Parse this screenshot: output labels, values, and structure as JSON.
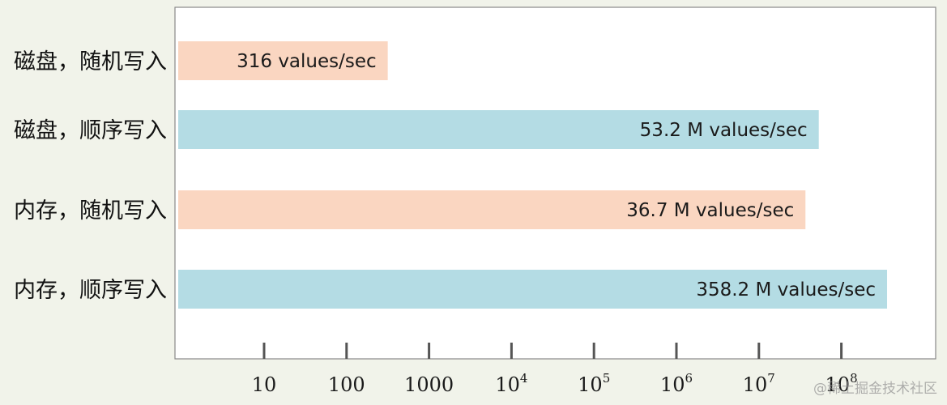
{
  "chart_data": {
    "type": "bar",
    "orientation": "horizontal",
    "x_scale": "log",
    "categories": [
      "磁盘，随机写入",
      "磁盘，顺序写入",
      "内存，随机写入",
      "内存，顺序写入"
    ],
    "values": [
      316,
      53200000,
      36700000,
      358200000
    ],
    "data_labels": [
      "316 values/sec",
      "53.2 M values/sec",
      "36.7 M values/sec",
      "358.2 M values/sec"
    ],
    "bar_colors": [
      "#fad6c1",
      "#b4dce4",
      "#fad6c1",
      "#b4dce4"
    ],
    "ticks": [
      {
        "value": 10,
        "base": "10",
        "exp": ""
      },
      {
        "value": 100,
        "base": "100",
        "exp": ""
      },
      {
        "value": 1000,
        "base": "1000",
        "exp": ""
      },
      {
        "value": 10000,
        "base": "10",
        "exp": "4"
      },
      {
        "value": 100000,
        "base": "10",
        "exp": "5"
      },
      {
        "value": 1000000,
        "base": "10",
        "exp": "6"
      },
      {
        "value": 10000000,
        "base": "10",
        "exp": "7"
      },
      {
        "value": 100000000,
        "base": "10",
        "exp": "8"
      }
    ],
    "xlim": [
      1.1,
      1350000000
    ],
    "grid": false,
    "legend": "none"
  },
  "watermark": "@稀土掘金技术社区"
}
